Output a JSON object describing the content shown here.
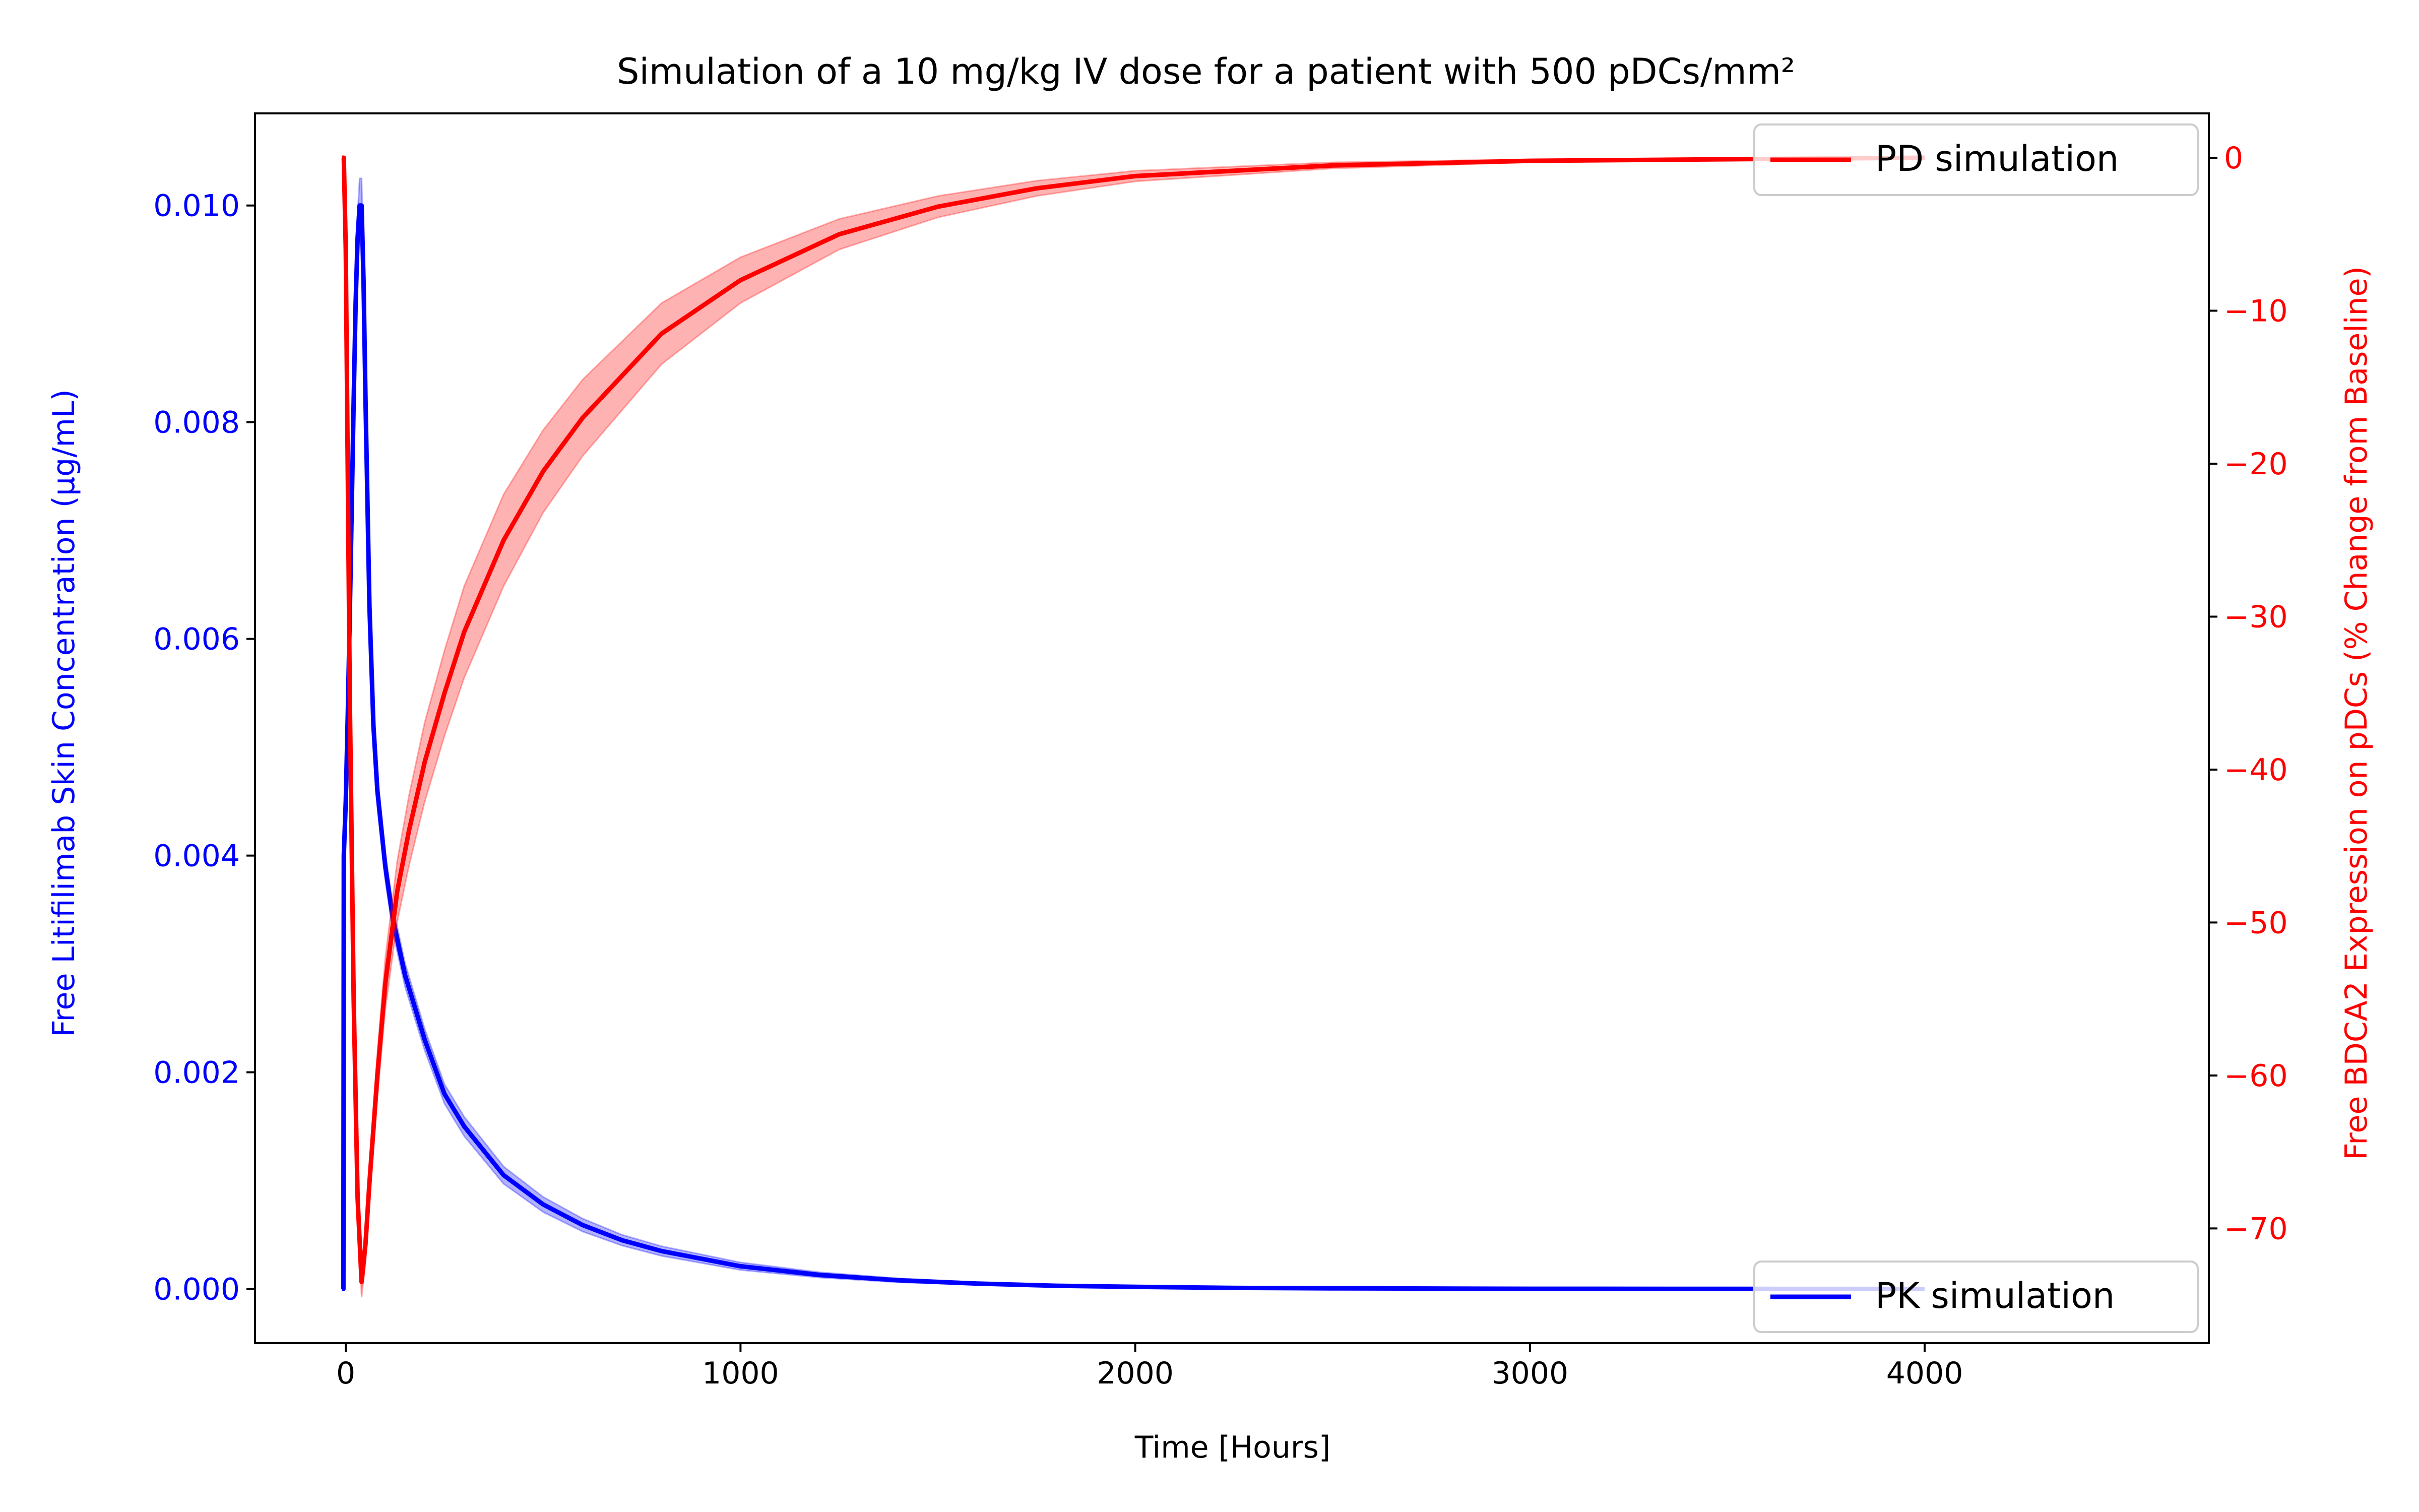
{
  "chart_data": {
    "type": "line",
    "title": "Simulation of a 10 mg/kg IV dose for a patient with 500 pDCs/mm²",
    "xlabel": "Time [Hours]",
    "ylabel_left": "Free Litifilimab Skin Concentration (μg/mL)",
    "ylabel_right": "Free BDCA2 Expression on pDCs (% Change from Baseline)",
    "xlim": [
      -230,
      4720
    ],
    "ylim_left": [
      -0.0005,
      0.01085
    ],
    "ylim_right": [
      -77.5,
      2.9
    ],
    "x_ticks": [
      0,
      1000,
      2000,
      3000,
      4000
    ],
    "x_tick_labels": [
      "0",
      "1000",
      "2000",
      "3000",
      "4000"
    ],
    "y_left_ticks": [
      0.0,
      0.002,
      0.004,
      0.006,
      0.008,
      0.01
    ],
    "y_left_tick_labels": [
      "0.000",
      "0.002",
      "0.004",
      "0.006",
      "0.008",
      "0.010"
    ],
    "y_right_ticks": [
      0,
      -10,
      -20,
      -30,
      -40,
      -50,
      -60,
      -70
    ],
    "y_right_tick_labels": [
      "0",
      "−10",
      "−20",
      "−30",
      "−40",
      "−50",
      "−60",
      "−70"
    ],
    "grid": false,
    "series": [
      {
        "name": "PK simulation",
        "axis": "left",
        "color": "#0000ff",
        "legend_position": "lower-right",
        "x": [
          -10,
          -6,
          -5,
          0,
          5,
          10,
          15,
          20,
          25,
          30,
          35,
          40,
          45,
          50,
          60,
          70,
          80,
          100,
          120,
          150,
          200,
          250,
          300,
          400,
          500,
          600,
          700,
          800,
          1000,
          1200,
          1400,
          1600,
          1800,
          2000,
          2250,
          2500,
          3000,
          3500,
          4000
        ],
        "y": [
          0.0,
          0.0,
          0.004,
          0.0045,
          0.0053,
          0.0062,
          0.0072,
          0.0082,
          0.0091,
          0.0097,
          0.01,
          0.01,
          0.0093,
          0.0082,
          0.0063,
          0.0052,
          0.0046,
          0.0039,
          0.0034,
          0.0029,
          0.0023,
          0.0018,
          0.0015,
          0.00105,
          0.00078,
          0.00059,
          0.00045,
          0.00035,
          0.00021,
          0.00013,
          8e-05,
          5e-05,
          3e-05,
          2e-05,
          1e-05,
          6e-06,
          2e-06,
          1e-06,
          0.0
        ],
        "band_half_width": [
          0.0,
          0.0,
          0.0,
          0.0001,
          0.0001,
          0.0001,
          0.00012,
          0.00015,
          0.00018,
          0.00022,
          0.00025,
          0.00025,
          0.00024,
          0.00022,
          0.00018,
          0.00016,
          0.00015,
          0.00013,
          0.00012,
          0.00011,
          0.0001,
          9e-05,
          9e-05,
          8e-05,
          7e-05,
          6e-05,
          5e-05,
          4.5e-05,
          3.5e-05,
          2.5e-05,
          1.8e-05,
          1.2e-05,
          8e-06,
          5e-06,
          3e-06,
          2e-06,
          1e-06,
          0.0,
          0.0
        ]
      },
      {
        "name": "PD simulation",
        "axis": "right",
        "color": "#ff0000",
        "legend_position": "upper-right",
        "x": [
          -10,
          -5,
          0,
          10,
          20,
          30,
          40,
          50,
          60,
          80,
          100,
          130,
          160,
          200,
          250,
          300,
          400,
          500,
          600,
          800,
          1000,
          1250,
          1500,
          1750,
          2000,
          2500,
          3000,
          3500,
          4000
        ],
        "y": [
          0.0,
          0.0,
          -6,
          -35,
          -55,
          -68,
          -73.5,
          -71,
          -67,
          -60,
          -54,
          -48,
          -44,
          -39.5,
          -35,
          -31,
          -25,
          -20.5,
          -17,
          -11.5,
          -8,
          -5,
          -3.2,
          -2,
          -1.2,
          -0.5,
          -0.2,
          -0.1,
          0.0
        ],
        "band_half_width": [
          0.0,
          0.0,
          0.2,
          0.4,
          0.6,
          0.8,
          1.0,
          1.2,
          1.3,
          1.5,
          1.7,
          2.0,
          2.3,
          2.6,
          2.8,
          3.0,
          3.0,
          2.7,
          2.5,
          2.0,
          1.5,
          1.0,
          0.7,
          0.5,
          0.35,
          0.2,
          0.1,
          0.05,
          0.0
        ]
      }
    ]
  }
}
